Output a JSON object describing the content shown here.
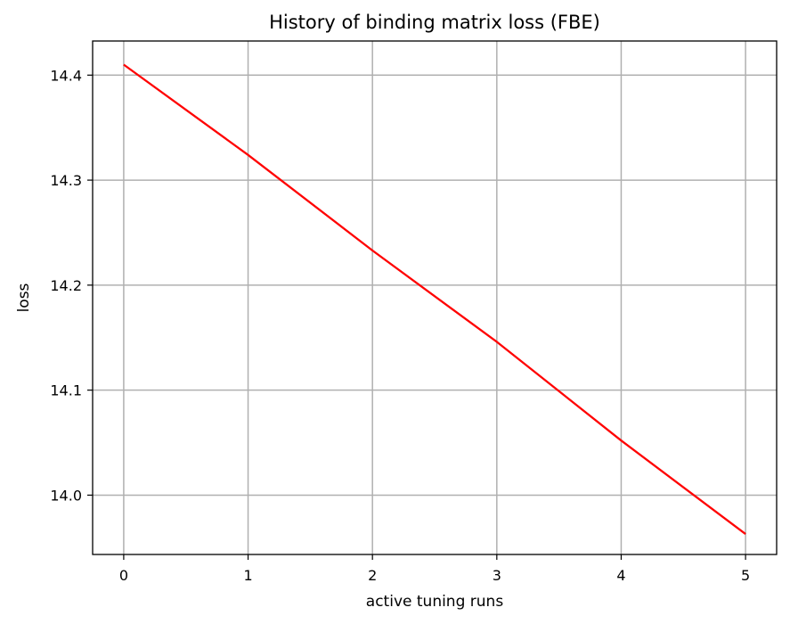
{
  "chart_data": {
    "type": "line",
    "title": "History of binding matrix loss (FBE)",
    "xlabel": "active tuning runs",
    "ylabel": "loss",
    "xlim": [
      -0.25,
      5.25
    ],
    "ylim": [
      13.9435,
      14.4325
    ],
    "x_ticks": [
      0,
      1,
      2,
      3,
      4,
      5
    ],
    "x_tick_labels": [
      "0",
      "1",
      "2",
      "3",
      "4",
      "5"
    ],
    "y_ticks": [
      14.0,
      14.1,
      14.2,
      14.3,
      14.4
    ],
    "y_tick_labels": [
      "14.0",
      "14.1",
      "14.2",
      "14.3",
      "14.4"
    ],
    "grid": true,
    "series": [
      {
        "color": "#ff0000",
        "x": [
          0,
          1,
          2,
          3,
          4,
          5
        ],
        "y": [
          14.41,
          14.324,
          14.233,
          14.146,
          14.052,
          13.963
        ]
      }
    ]
  }
}
